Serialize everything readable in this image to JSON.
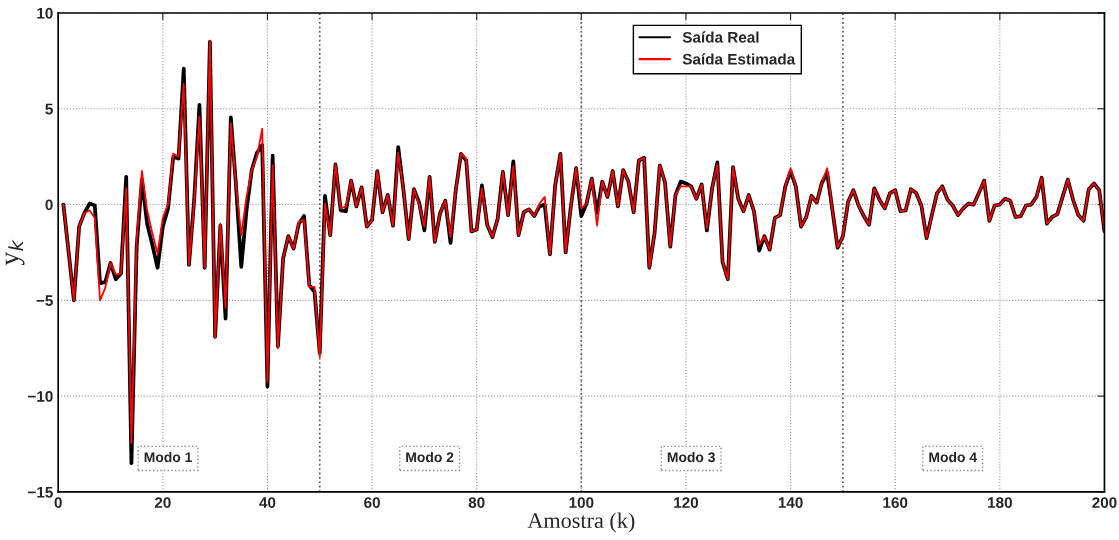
{
  "chart_data": {
    "type": "line",
    "xlabel": "Amostra (k)",
    "ylabel": "y$_{k}$",
    "x": [
      1,
      2,
      3,
      4,
      5,
      6,
      7,
      8,
      9,
      10,
      11,
      12,
      13,
      14,
      15,
      16,
      17,
      18,
      19,
      20,
      21,
      22,
      23,
      24,
      25,
      26,
      27,
      28,
      29,
      30,
      31,
      32,
      33,
      34,
      35,
      36,
      37,
      38,
      39,
      40,
      41,
      42,
      43,
      44,
      45,
      46,
      47,
      48,
      49,
      50,
      51,
      52,
      53,
      54,
      55,
      56,
      57,
      58,
      59,
      60,
      61,
      62,
      63,
      64,
      65,
      66,
      67,
      68,
      69,
      70,
      71,
      72,
      73,
      74,
      75,
      76,
      77,
      78,
      79,
      80,
      81,
      82,
      83,
      84,
      85,
      86,
      87,
      88,
      89,
      90,
      91,
      92,
      93,
      94,
      95,
      96,
      97,
      98,
      99,
      100,
      101,
      102,
      103,
      104,
      105,
      106,
      107,
      108,
      109,
      110,
      111,
      112,
      113,
      114,
      115,
      116,
      117,
      118,
      119,
      120,
      121,
      122,
      123,
      124,
      125,
      126,
      127,
      128,
      129,
      130,
      131,
      132,
      133,
      134,
      135,
      136,
      137,
      138,
      139,
      140,
      141,
      142,
      143,
      144,
      145,
      146,
      147,
      148,
      149,
      150,
      151,
      152,
      153,
      154,
      155,
      156,
      157,
      158,
      159,
      160,
      161,
      162,
      163,
      164,
      165,
      166,
      167,
      168,
      169,
      170,
      171,
      172,
      173,
      174,
      175,
      176,
      177,
      178,
      179,
      180,
      181,
      182,
      183,
      184,
      185,
      186,
      187,
      188,
      189,
      190,
      191,
      192,
      193,
      194,
      195,
      196,
      197,
      198,
      199,
      200
    ],
    "series": [
      {
        "name": "Saída Real",
        "color": "#000000",
        "values": [
          0,
          -2.5,
          -5,
          -1.15,
          -0.45,
          0.05,
          -0.05,
          -4.1,
          -4.05,
          -3.05,
          -3.9,
          -3.6,
          1.45,
          -13.5,
          -2.2,
          1.3,
          -1.0,
          -2.1,
          -3.3,
          -1.15,
          -0.2,
          2.5,
          2.4,
          7.1,
          -3.15,
          0.25,
          5.2,
          -3.3,
          8.5,
          -6.9,
          -1.1,
          -5.95,
          4.55,
          0.95,
          -3.25,
          -0.3,
          1.8,
          2.7,
          3.1,
          -9.5,
          2.55,
          -7.4,
          -2.8,
          -1.65,
          -2.3,
          -1.0,
          -0.6,
          -4.2,
          -4.55,
          -7.75,
          0.45,
          -1.6,
          2.1,
          -0.3,
          -0.35,
          1.25,
          -0.1,
          0.9,
          -1.15,
          -0.8,
          1.75,
          -0.4,
          0.5,
          -1.1,
          3.0,
          0.75,
          -1.8,
          0.8,
          0.1,
          -1.35,
          1.45,
          -1.95,
          -0.45,
          0.2,
          -2.0,
          0.75,
          2.65,
          2.3,
          -1.4,
          -1.3,
          1.0,
          -1.05,
          -1.7,
          -0.75,
          1.7,
          -0.55,
          2.25,
          -1.6,
          -0.4,
          -0.25,
          -0.6,
          -0.1,
          0,
          -2.6,
          1.0,
          2.65,
          -2.5,
          -0.1,
          1.9,
          -0.6,
          0.05,
          1.35,
          -0.45,
          1.2,
          0.4,
          1.75,
          -0.1,
          1.8,
          1.2,
          -0.4,
          2.3,
          2.45,
          -3.3,
          -1.5,
          2.05,
          1.15,
          -2.2,
          0.5,
          1.2,
          1.1,
          0.95,
          0.3,
          1.05,
          -1.35,
          0.85,
          2.2,
          -3.0,
          -3.9,
          1.95,
          0.3,
          -0.35,
          0.5,
          -0.35,
          -2.4,
          -1.65,
          -2.35,
          -0.7,
          -0.55,
          0.95,
          1.75,
          0.95,
          -1.15,
          -0.65,
          0.45,
          0.1,
          1.15,
          1.65,
          -0.3,
          -2.25,
          -1.65,
          0.15,
          0.75,
          -0.05,
          -0.6,
          -1.05,
          0.85,
          0.25,
          -0.2,
          0.6,
          0.75,
          -0.35,
          -0.3,
          0.8,
          0.6,
          -0.05,
          -1.75,
          -0.55,
          0.6,
          0.95,
          0.25,
          -0.05,
          -0.55,
          -0.2,
          0.05,
          0,
          0.6,
          1.25,
          -0.85,
          -0.05,
          0,
          0.3,
          0.2,
          -0.65,
          -0.6,
          -0.05,
          0,
          0.4,
          1.4,
          -1.0,
          -0.65,
          -0.5,
          0.4,
          1.3,
          0.25,
          -0.55,
          -0.85,
          0.8,
          1.1,
          0.75,
          -1.4
        ]
      },
      {
        "name": "Saída Estimada",
        "color": "#ff0000",
        "values": [
          0,
          -2.5,
          -5,
          -1.15,
          -0.45,
          -0.3,
          -0.7,
          -5,
          -4.35,
          -3.05,
          -3.65,
          -3.6,
          0.85,
          -12.45,
          -1.85,
          1.75,
          -0.3,
          -1.5,
          -2.55,
          -0.7,
          0.05,
          2.65,
          2.5,
          6.3,
          -3.15,
          0.1,
          4.6,
          -3.3,
          8.55,
          -6.95,
          -1.0,
          -5.4,
          4.25,
          0.95,
          -1.6,
          0.4,
          1.8,
          2.5,
          3.95,
          -9.25,
          2.05,
          -7.5,
          -2.8,
          -1.65,
          -2.3,
          -0.9,
          -0.8,
          -4.3,
          -4.3,
          -7.95,
          0.05,
          -1.6,
          2.1,
          -0.2,
          -0.1,
          1.25,
          -0.1,
          0.9,
          -1.15,
          -0.8,
          1.75,
          -0.4,
          0.5,
          -1.1,
          2.7,
          0.75,
          -1.8,
          0.8,
          0,
          -1.15,
          1.45,
          -1.95,
          -0.45,
          0.2,
          -1.7,
          0.75,
          2.65,
          2.4,
          -1.4,
          -1.3,
          0.85,
          -1.05,
          -1.7,
          -0.75,
          1.7,
          -0.55,
          2.0,
          -1.6,
          -0.4,
          -0.25,
          -0.6,
          0.05,
          0.4,
          -2.6,
          1.0,
          2.65,
          -2.5,
          -0.1,
          1.9,
          -0.2,
          0.05,
          1.35,
          -1.1,
          1.2,
          0.4,
          1.75,
          -0.1,
          1.8,
          1.2,
          -0.4,
          2.3,
          2.45,
          -3.3,
          -1.5,
          2.05,
          1.15,
          -2.2,
          0.5,
          0.95,
          0.95,
          0.95,
          0.3,
          1.05,
          -1.25,
          0.85,
          2.1,
          -3.0,
          -3.9,
          1.95,
          0.3,
          -0.35,
          0.5,
          -0.35,
          -2.1,
          -1.65,
          -2.35,
          -0.7,
          -0.55,
          0.95,
          1.9,
          0.95,
          -1.15,
          -0.65,
          0.45,
          0.1,
          1.15,
          1.9,
          -0.3,
          -2.25,
          -1.65,
          0.15,
          0.75,
          -0.05,
          -0.6,
          -1.05,
          0.85,
          0.25,
          -0.2,
          0.6,
          0.75,
          -0.35,
          -0.3,
          0.8,
          0.6,
          -0.05,
          -1.75,
          -0.55,
          0.6,
          0.95,
          0.25,
          -0.05,
          -0.55,
          -0.2,
          0.05,
          0,
          0.6,
          1.25,
          -0.85,
          -0.05,
          0,
          0.3,
          0.2,
          -0.65,
          -0.6,
          -0.05,
          0,
          0.4,
          1.4,
          -1.0,
          -0.65,
          -0.5,
          0.4,
          1.3,
          0.25,
          -0.55,
          -0.85,
          0.8,
          1.1,
          0.75,
          -1.4
        ]
      }
    ],
    "xlim": [
      0,
      200
    ],
    "ylim": [
      -15,
      10
    ],
    "xticks": [
      0,
      20,
      40,
      60,
      80,
      100,
      120,
      140,
      160,
      180,
      200
    ],
    "yticks": [
      -15,
      -10,
      -5,
      0,
      5,
      10
    ],
    "grid": true,
    "legend": "top",
    "line_style": "solid",
    "marker": "none",
    "ref_lines": [
      {
        "axis": "x",
        "value": 50,
        "line_style": "dotted"
      },
      {
        "axis": "x",
        "value": 100,
        "line_style": "dotted"
      },
      {
        "axis": "x",
        "value": 150,
        "line_style": "dotted"
      }
    ],
    "annotations": [
      "Modo 1",
      "Modo 2",
      "Modo 3",
      "Modo 4"
    ]
  }
}
